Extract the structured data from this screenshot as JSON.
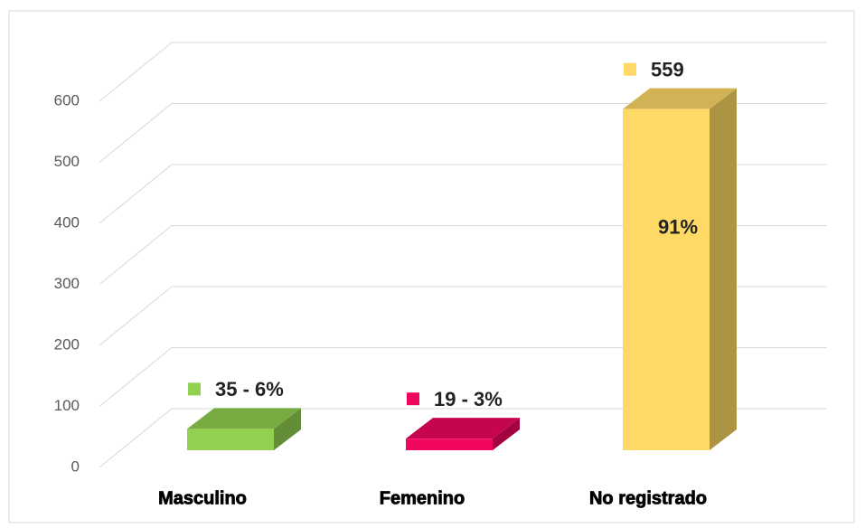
{
  "chart_data": {
    "type": "bar3d",
    "categories": [
      "Masculino",
      "Femenino",
      "No registrado"
    ],
    "values": [
      35,
      19,
      559
    ],
    "value_labels": [
      "35 - 6%",
      "19 - 3%",
      "559"
    ],
    "colors": [
      "#92d050",
      "#f0065f",
      "#ffd966"
    ],
    "annotations": [
      {
        "text": "91%",
        "category": 2
      }
    ],
    "ylim": [
      0,
      600
    ],
    "yticks": [
      0,
      100,
      200,
      300,
      400,
      500,
      600
    ],
    "grid": true
  }
}
